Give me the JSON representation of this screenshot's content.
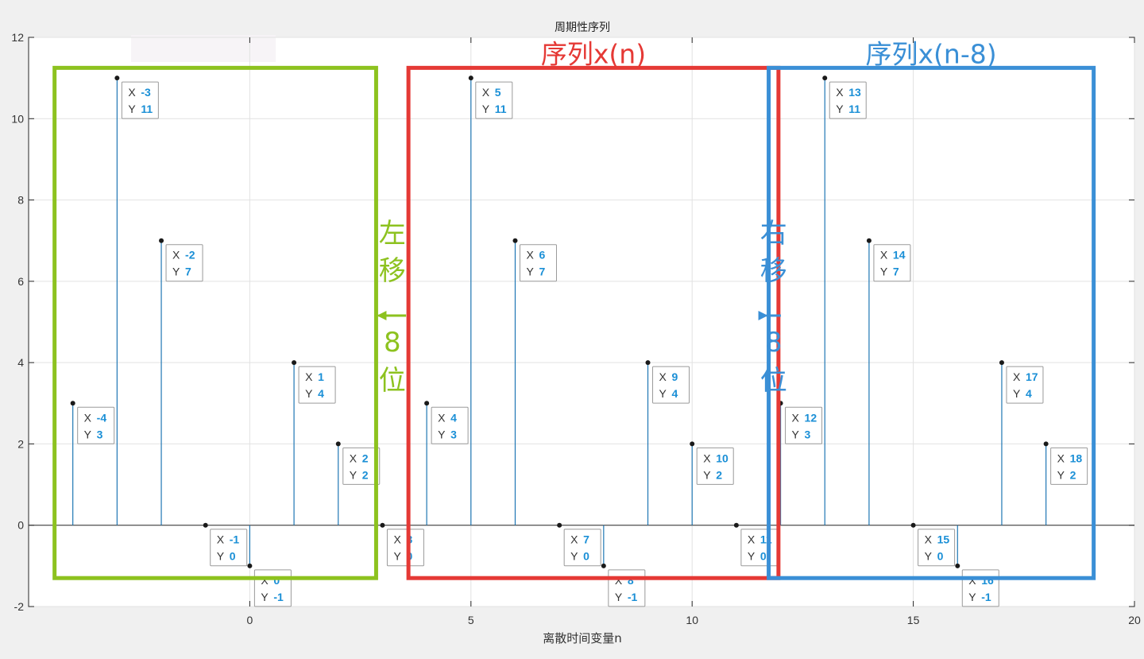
{
  "chart_data": {
    "type": "stem",
    "title": "周期性序列",
    "xlabel": "离散时间变量n",
    "ylabel": "",
    "xlim": [
      -5,
      20
    ],
    "ylim": [
      -2,
      12
    ],
    "grid": true,
    "xticks": [
      0,
      5,
      10,
      15,
      20
    ],
    "yticks": [
      -2,
      0,
      2,
      4,
      6,
      8,
      10,
      12
    ],
    "series": [
      {
        "name": "周期性序列",
        "color": "#1f77b4",
        "x": [
          -4,
          -3,
          -2,
          -1,
          0,
          1,
          2,
          3,
          4,
          5,
          6,
          7,
          8,
          9,
          10,
          11,
          12,
          13,
          14,
          15,
          16,
          17,
          18
        ],
        "y": [
          3,
          11,
          7,
          0,
          -1,
          4,
          2,
          0,
          3,
          11,
          7,
          0,
          -1,
          4,
          2,
          0,
          3,
          11,
          7,
          0,
          -1,
          4,
          2
        ]
      }
    ],
    "datatip_labels": {
      "x": "X",
      "y": "Y"
    },
    "annotations": {
      "left_box": {
        "color": "#8dc21f",
        "x_range": [
          -4,
          3
        ]
      },
      "middle_box": {
        "label": "序列x(n)",
        "color": "#e53935",
        "x_range": [
          4,
          11
        ]
      },
      "right_box": {
        "label": "序列x(n-8)",
        "color": "#3a8fd6",
        "x_range": [
          12,
          18
        ]
      },
      "left_shift": {
        "chars": [
          "左",
          "移",
          "8",
          "位"
        ],
        "color": "#8dc21f",
        "direction": "left"
      },
      "right_shift": {
        "chars": [
          "右",
          "移",
          "8",
          "位"
        ],
        "color": "#3a8fd6",
        "direction": "right"
      }
    }
  }
}
